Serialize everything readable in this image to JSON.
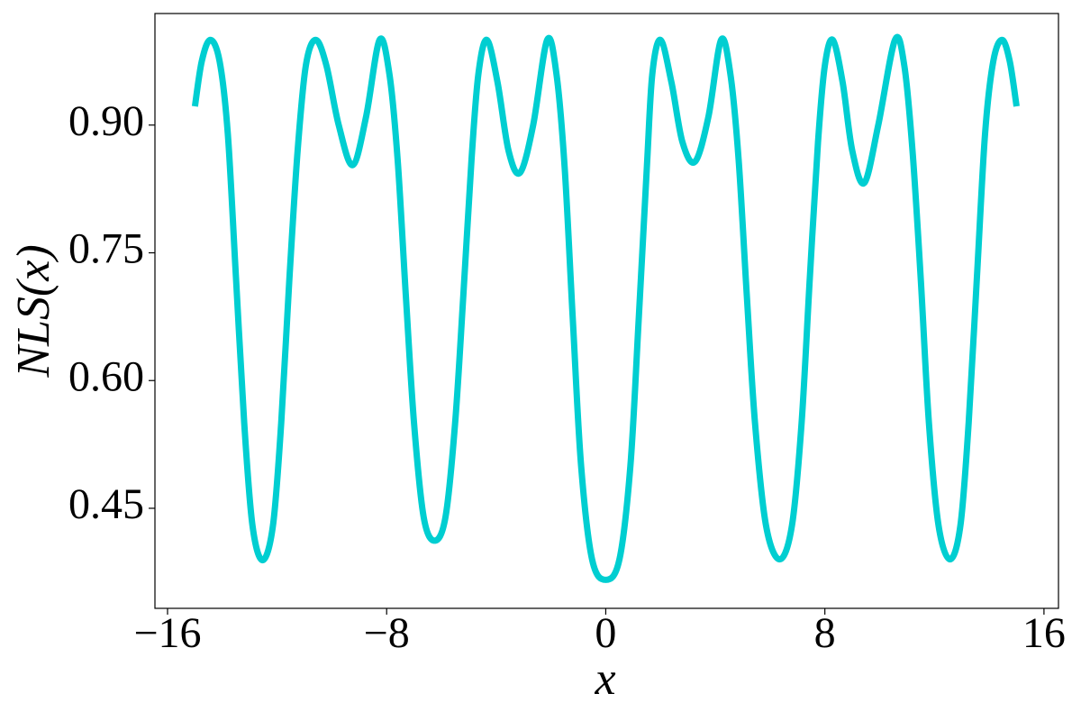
{
  "chart_data": {
    "type": "line",
    "xlabel": "x",
    "ylabel": "NLS(x)",
    "x": [
      -15.0,
      -14.75,
      -14.44,
      -14.1,
      -13.8,
      -13.5,
      -13.2,
      -12.9,
      -12.53,
      -12.15,
      -11.85,
      -11.55,
      -11.25,
      -10.95,
      -10.59,
      -10.2,
      -9.75,
      -9.24,
      -8.75,
      -8.26,
      -7.9,
      -7.6,
      -7.3,
      -7.0,
      -6.65,
      -6.25,
      -5.85,
      -5.5,
      -5.2,
      -4.9,
      -4.65,
      -4.34,
      -3.95,
      -3.55,
      -3.13,
      -2.65,
      -2.14,
      -1.8,
      -1.5,
      -1.2,
      -0.9,
      -0.5,
      0,
      0.5,
      0.9,
      1.2,
      1.5,
      1.7,
      2.0,
      2.4,
      2.8,
      3.26,
      3.75,
      4.21,
      4.55,
      4.85,
      5.15,
      5.45,
      5.85,
      6.35,
      6.8,
      7.15,
      7.45,
      7.75,
      8.0,
      8.29,
      8.65,
      9.0,
      9.44,
      9.95,
      10.56,
      10.9,
      11.2,
      11.5,
      11.8,
      12.15,
      12.57,
      12.95,
      13.25,
      13.55,
      13.85,
      14.15,
      14.47,
      14.75,
      15.0
    ],
    "series": [
      {
        "color": "#00ced1",
        "values": [
          0.922,
          0.975,
          1.0,
          0.975,
          0.89,
          0.72,
          0.55,
          0.43,
          0.389,
          0.43,
          0.55,
          0.72,
          0.87,
          0.97,
          1.0,
          0.97,
          0.9,
          0.853,
          0.91,
          1.0,
          0.96,
          0.86,
          0.7,
          0.55,
          0.44,
          0.412,
          0.44,
          0.55,
          0.7,
          0.86,
          0.96,
          1.0,
          0.95,
          0.87,
          0.844,
          0.9,
          1.0,
          0.96,
          0.85,
          0.67,
          0.5,
          0.39,
          0.366,
          0.39,
          0.5,
          0.67,
          0.85,
          0.96,
          1.0,
          0.95,
          0.88,
          0.857,
          0.91,
          1.0,
          0.96,
          0.86,
          0.7,
          0.55,
          0.43,
          0.39,
          0.43,
          0.55,
          0.72,
          0.88,
          0.97,
          1.0,
          0.95,
          0.87,
          0.832,
          0.9,
          1.0,
          0.97,
          0.87,
          0.72,
          0.55,
          0.43,
          0.39,
          0.43,
          0.55,
          0.72,
          0.89,
          0.975,
          1.0,
          0.975,
          0.922
        ]
      }
    ],
    "xlim": [
      -16.46,
      16.53
    ],
    "xticks": [
      {
        "value": -16,
        "label": "−16"
      },
      {
        "value": -8,
        "label": "−8"
      },
      0,
      8,
      16
    ],
    "ylim": [
      0.3325,
      1.031
    ],
    "yticks": [
      {
        "value": 0.45,
        "label": "0.45"
      },
      {
        "value": 0.6,
        "label": "0.60"
      },
      0.75,
      {
        "value": 0.9,
        "label": "0.90"
      }
    ]
  }
}
